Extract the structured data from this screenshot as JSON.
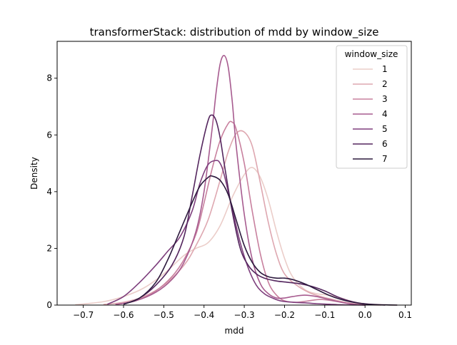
{
  "chart_data": {
    "type": "line",
    "title": "transformerStack: distribution of mdd by window_size",
    "xlabel": "mdd",
    "ylabel": "Density",
    "xlim": [
      -0.765,
      0.115
    ],
    "ylim": [
      0,
      9.3
    ],
    "xticks": [
      -0.7,
      -0.6,
      -0.5,
      -0.4,
      -0.3,
      -0.2,
      -0.1,
      0.0,
      0.1
    ],
    "xtick_labels": [
      "−0.7",
      "−0.6",
      "−0.5",
      "−0.4",
      "−0.3",
      "−0.2",
      "−0.1",
      "0.0",
      "0.1"
    ],
    "yticks": [
      0,
      2,
      4,
      6,
      8
    ],
    "ytick_labels": [
      "0",
      "2",
      "4",
      "6",
      "8"
    ],
    "grid": false,
    "legend": {
      "title": "window_size",
      "placement": "top-right"
    },
    "series": [
      {
        "name": "1",
        "color": "#ebcdc9",
        "x": [
          -0.72,
          -0.65,
          -0.6,
          -0.55,
          -0.5,
          -0.45,
          -0.42,
          -0.39,
          -0.36,
          -0.33,
          -0.3,
          -0.28,
          -0.26,
          -0.24,
          -0.22,
          -0.2,
          -0.18,
          -0.15,
          -0.12,
          -0.09,
          -0.06,
          -0.03,
          0.0,
          0.03,
          0.06,
          0.08
        ],
        "y": [
          0.01,
          0.12,
          0.3,
          0.6,
          1.1,
          1.75,
          2.0,
          2.2,
          2.8,
          3.8,
          4.6,
          4.85,
          4.5,
          3.7,
          2.6,
          1.65,
          1.0,
          0.55,
          0.4,
          0.35,
          0.25,
          0.12,
          0.05,
          0.02,
          0.005,
          0.0
        ]
      },
      {
        "name": "2",
        "color": "#dea7b0",
        "x": [
          -0.65,
          -0.6,
          -0.55,
          -0.5,
          -0.45,
          -0.42,
          -0.39,
          -0.36,
          -0.34,
          -0.32,
          -0.3,
          -0.28,
          -0.26,
          -0.24,
          -0.22,
          -0.2,
          -0.17,
          -0.14,
          -0.11,
          -0.08,
          -0.05,
          -0.02,
          0.01,
          0.04
        ],
        "y": [
          0.02,
          0.1,
          0.3,
          0.7,
          1.4,
          2.1,
          3.0,
          4.4,
          5.4,
          6.05,
          6.1,
          5.6,
          4.3,
          2.9,
          1.8,
          1.1,
          0.7,
          0.45,
          0.3,
          0.2,
          0.1,
          0.04,
          0.01,
          0.0
        ]
      },
      {
        "name": "3",
        "color": "#c8809e",
        "x": [
          -0.62,
          -0.57,
          -0.52,
          -0.48,
          -0.45,
          -0.42,
          -0.4,
          -0.38,
          -0.36,
          -0.34,
          -0.33,
          -0.32,
          -0.3,
          -0.28,
          -0.26,
          -0.24,
          -0.22,
          -0.2,
          -0.17,
          -0.14,
          -0.11,
          -0.08,
          -0.05,
          -0.02,
          0.0
        ],
        "y": [
          0.02,
          0.15,
          0.5,
          1.0,
          1.6,
          2.5,
          3.6,
          4.8,
          5.8,
          6.4,
          6.45,
          6.2,
          5.0,
          3.3,
          1.8,
          0.8,
          0.35,
          0.15,
          0.1,
          0.15,
          0.2,
          0.15,
          0.08,
          0.02,
          0.0
        ]
      },
      {
        "name": "4",
        "color": "#a75b8f",
        "x": [
          -0.62,
          -0.57,
          -0.52,
          -0.48,
          -0.45,
          -0.42,
          -0.4,
          -0.38,
          -0.37,
          -0.36,
          -0.35,
          -0.34,
          -0.33,
          -0.32,
          -0.3,
          -0.28,
          -0.26,
          -0.24,
          -0.22,
          -0.2,
          -0.18,
          -0.15,
          -0.12,
          -0.09,
          -0.06,
          -0.03,
          0.0
        ],
        "y": [
          0.02,
          0.15,
          0.45,
          0.9,
          1.5,
          2.6,
          4.0,
          6.2,
          7.5,
          8.5,
          8.8,
          8.4,
          7.2,
          5.6,
          3.2,
          1.6,
          0.75,
          0.4,
          0.25,
          0.25,
          0.3,
          0.35,
          0.3,
          0.2,
          0.1,
          0.03,
          0.0
        ]
      },
      {
        "name": "5",
        "color": "#7e3f7d",
        "x": [
          -0.64,
          -0.6,
          -0.56,
          -0.52,
          -0.49,
          -0.46,
          -0.43,
          -0.41,
          -0.39,
          -0.37,
          -0.36,
          -0.35,
          -0.33,
          -0.31,
          -0.29,
          -0.27,
          -0.25,
          -0.23,
          -0.21,
          -0.18,
          -0.15,
          -0.12,
          -0.09,
          -0.06,
          -0.03,
          0.0
        ],
        "y": [
          0.03,
          0.3,
          0.8,
          1.4,
          1.9,
          2.4,
          3.3,
          4.3,
          4.95,
          5.1,
          5.0,
          4.6,
          3.4,
          2.2,
          1.3,
          0.7,
          0.4,
          0.25,
          0.15,
          0.1,
          0.08,
          0.05,
          0.03,
          0.01,
          0.005,
          0.0
        ]
      },
      {
        "name": "6",
        "color": "#54265e",
        "x": [
          -0.6,
          -0.56,
          -0.52,
          -0.48,
          -0.45,
          -0.43,
          -0.41,
          -0.39,
          -0.38,
          -0.37,
          -0.36,
          -0.35,
          -0.33,
          -0.31,
          -0.29,
          -0.27,
          -0.25,
          -0.22,
          -0.19,
          -0.16,
          -0.13,
          -0.1,
          -0.07,
          -0.04,
          -0.01,
          0.02,
          0.05
        ],
        "y": [
          0.03,
          0.25,
          0.7,
          1.4,
          2.4,
          3.8,
          5.3,
          6.5,
          6.7,
          6.5,
          5.9,
          5.0,
          3.3,
          2.0,
          1.4,
          1.1,
          0.95,
          0.85,
          0.8,
          0.75,
          0.65,
          0.5,
          0.3,
          0.15,
          0.06,
          0.02,
          0.0
        ]
      },
      {
        "name": "7",
        "color": "#2d1a3e",
        "x": [
          -0.6,
          -0.56,
          -0.52,
          -0.49,
          -0.46,
          -0.43,
          -0.41,
          -0.39,
          -0.38,
          -0.36,
          -0.34,
          -0.32,
          -0.3,
          -0.28,
          -0.26,
          -0.24,
          -0.22,
          -0.2,
          -0.18,
          -0.15,
          -0.12,
          -0.09,
          -0.06,
          -0.03,
          0.0,
          0.03,
          0.06,
          0.08
        ],
        "y": [
          0.03,
          0.25,
          0.8,
          1.6,
          2.6,
          3.6,
          4.2,
          4.5,
          4.55,
          4.4,
          3.9,
          3.0,
          2.1,
          1.5,
          1.15,
          1.0,
          0.95,
          0.95,
          0.9,
          0.75,
          0.55,
          0.35,
          0.2,
          0.1,
          0.04,
          0.015,
          0.005,
          0.0
        ]
      }
    ]
  }
}
